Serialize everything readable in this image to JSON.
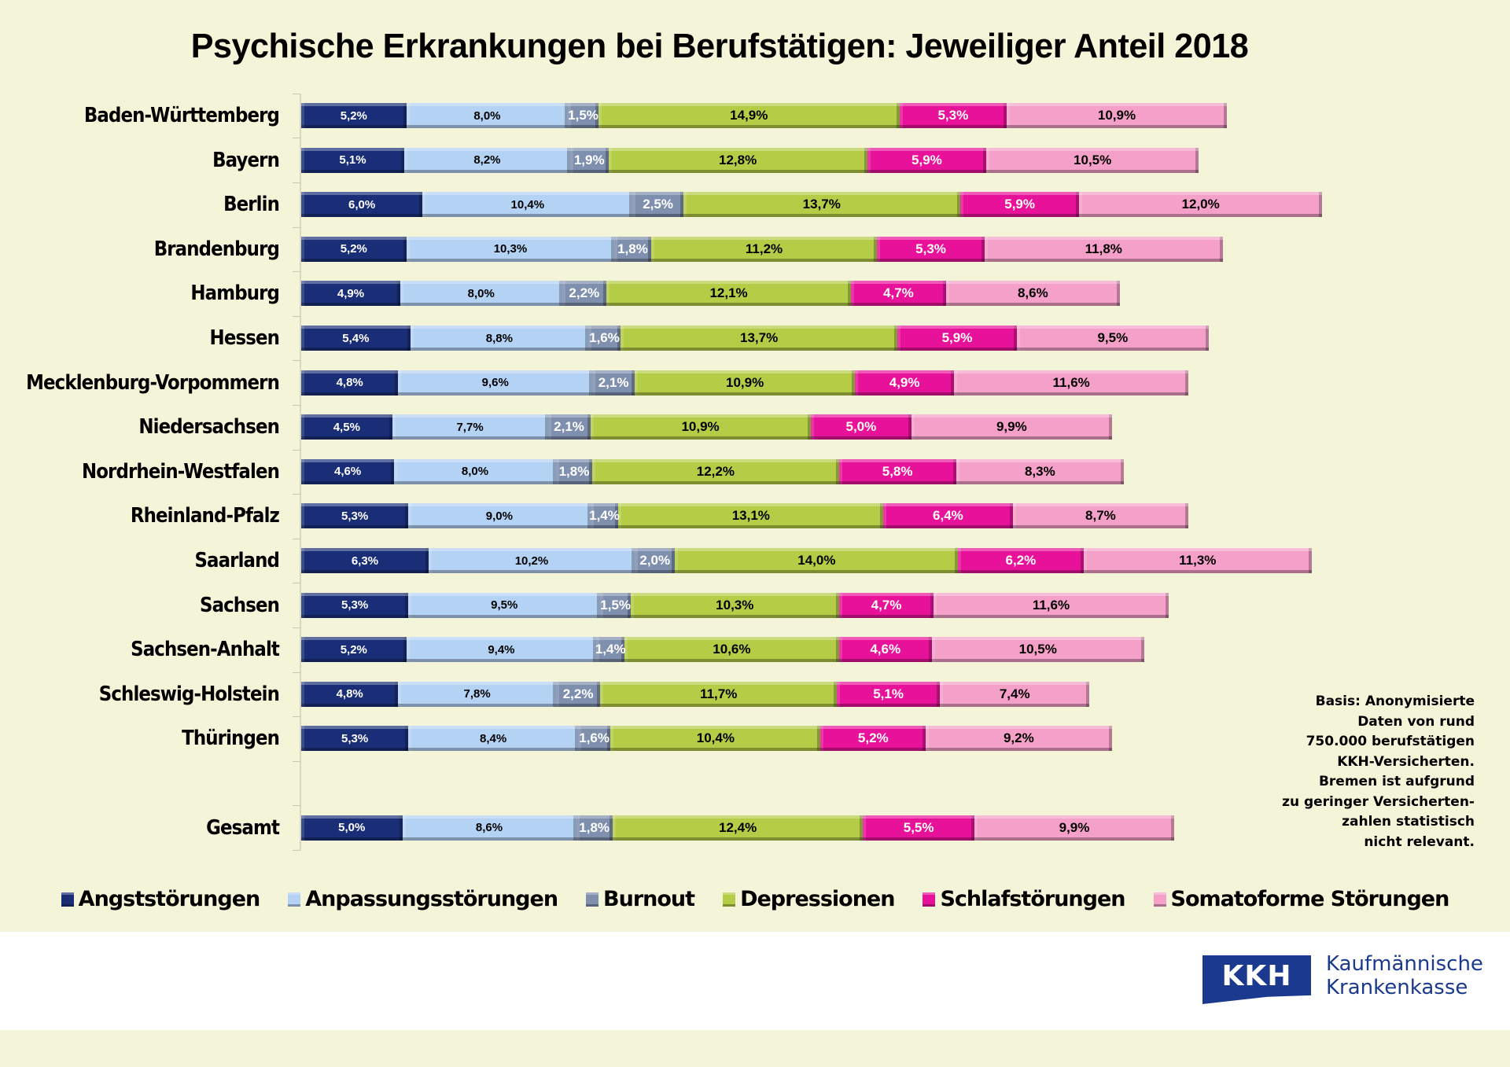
{
  "chart_data": {
    "type": "bar",
    "orientation": "horizontal",
    "stacked": true,
    "title": "Psychische Erkrankungen bei Berufstätigen: Jeweiliger Anteil 2018",
    "xlabel": "",
    "ylabel": "",
    "unit": "%",
    "grid": false,
    "legend_position": "bottom",
    "categories": [
      "Baden-Württemberg",
      "Bayern",
      "Berlin",
      "Brandenburg",
      "Hamburg",
      "Hessen",
      "Mecklenburg-Vorpommern",
      "Niedersachsen",
      "Nordrhein-Westfalen",
      "Rheinland-Pfalz",
      "Saarland",
      "Sachsen",
      "Sachsen-Anhalt",
      "Schleswig-Holstein",
      "Thüringen",
      "",
      "Gesamt"
    ],
    "series": [
      {
        "name": "Angststörungen",
        "color": "#1a2e78",
        "label_color": "#ffffff",
        "values": [
          5.2,
          5.1,
          6.0,
          5.2,
          4.9,
          5.4,
          4.8,
          4.5,
          4.6,
          5.3,
          6.3,
          5.3,
          5.2,
          4.8,
          5.3,
          null,
          5.0
        ]
      },
      {
        "name": "Anpassungsstörungen",
        "color": "#b4d2f4",
        "label_color": "#000000",
        "values": [
          8.0,
          8.2,
          10.4,
          10.3,
          8.0,
          8.8,
          9.6,
          7.7,
          8.0,
          9.0,
          10.2,
          9.5,
          9.4,
          7.8,
          8.4,
          null,
          8.6
        ]
      },
      {
        "name": "Burnout",
        "color": "#7f8fae",
        "label_color": "#ffffff",
        "values": [
          1.5,
          1.9,
          2.5,
          1.8,
          2.2,
          1.6,
          2.1,
          2.1,
          1.8,
          1.4,
          2.0,
          1.5,
          1.4,
          2.2,
          1.6,
          null,
          1.8
        ]
      },
      {
        "name": "Depressionen",
        "color": "#b4cc46",
        "label_color": "#000000",
        "values": [
          14.9,
          12.8,
          13.7,
          11.2,
          12.1,
          13.7,
          10.9,
          10.9,
          12.2,
          13.1,
          14.0,
          10.3,
          10.6,
          11.7,
          10.4,
          null,
          12.4
        ]
      },
      {
        "name": "Schlafstörungen",
        "color": "#e8129a",
        "label_color": "#ffffff",
        "values": [
          5.3,
          5.9,
          5.9,
          5.3,
          4.7,
          5.9,
          4.9,
          5.0,
          5.8,
          6.4,
          6.2,
          4.7,
          4.6,
          5.1,
          5.2,
          null,
          5.5
        ]
      },
      {
        "name": "Somatoforme Störungen",
        "color": "#f4a0c8",
        "label_color": "#000000",
        "values": [
          10.9,
          10.5,
          12.0,
          11.8,
          8.6,
          9.5,
          11.6,
          9.9,
          8.3,
          8.7,
          11.3,
          11.6,
          10.5,
          7.4,
          9.2,
          null,
          9.9
        ]
      }
    ],
    "data_labels": [
      [
        "5,2%",
        "8,0%",
        "1,5%",
        "14,9%",
        "5,3%",
        "10,9%"
      ],
      [
        "5,1%",
        "8,2%",
        "1,9%",
        "12,8%",
        "5,9%",
        "10,5%"
      ],
      [
        "6,0%",
        "10,4%",
        "2,5%",
        "13,7%",
        "5,9%",
        "12,0%"
      ],
      [
        "5,2%",
        "10,3%",
        "1,8%",
        "11,2%",
        "5,3%",
        "11,8%"
      ],
      [
        "4,9%",
        "8,0%",
        "2,2%",
        "12,1%",
        "4,7%",
        "8,6%"
      ],
      [
        "5,4%",
        "8,8%",
        "1,6%",
        "13,7%",
        "5,9%",
        "9,5%"
      ],
      [
        "4,8%",
        "9,6%",
        "2,1%",
        "10,9%",
        "4,9%",
        "11,6%"
      ],
      [
        "4,5%",
        "7,7%",
        "2,1%",
        "10,9%",
        "5,0%",
        "9,9%"
      ],
      [
        "4,6%",
        "8,0%",
        "1,8%",
        "12,2%",
        "5,8%",
        "8,3%"
      ],
      [
        "5,3%",
        "9,0%",
        "1,4%",
        "13,1%",
        "6,4%",
        "8,7%"
      ],
      [
        "6,3%",
        "10,2%",
        "2,0%",
        "14,0%",
        "6,2%",
        "11,3%"
      ],
      [
        "5,3%",
        "9,5%",
        "1,5%",
        "10,3%",
        "4,7%",
        "11,6%"
      ],
      [
        "5,2%",
        "9,4%",
        "1,4%",
        "10,6%",
        "4,6%",
        "10,5%"
      ],
      [
        "4,8%",
        "7,8%",
        "2,2%",
        "11,7%",
        "5,1%",
        "7,4%"
      ],
      [
        "5,3%",
        "8,4%",
        "1,6%",
        "10,4%",
        "5,2%",
        "9,2%"
      ],
      null,
      [
        "5,0%",
        "8,6%",
        "1,8%",
        "12,4%",
        "5,5%",
        "9,9%"
      ]
    ],
    "annotation": [
      "Basis: Anonymisierte",
      "Daten von rund",
      "750.000 berufstätigen",
      "KKH-Versicherten.",
      "Bremen ist aufgrund",
      "zu geringer Versicherten-",
      "zahlen statistisch",
      "nicht relevant."
    ]
  },
  "logo": {
    "abbr": "KKH",
    "line1": "Kaufmännische",
    "line2": "Krankenkasse",
    "brand_color": "#1b3a8f"
  },
  "background_color": "#f4f4d8"
}
